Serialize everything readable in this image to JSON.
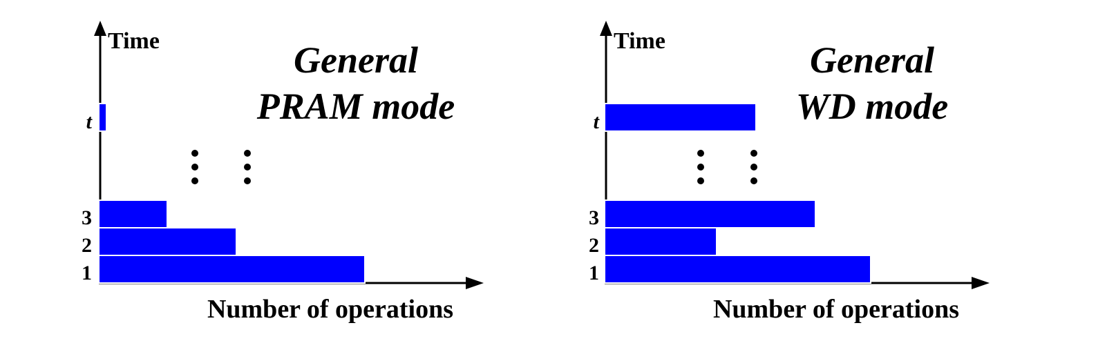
{
  "panels": [
    {
      "title_line1": "General",
      "title_line2": "PRAM mode",
      "y_axis_label": "Time",
      "x_axis_label": "Number of operations",
      "steps": [
        {
          "label": "1",
          "operations": 0.653
        },
        {
          "label": "2",
          "operations": 0.338
        },
        {
          "label": "3",
          "operations": 0.168
        },
        {
          "label": "t",
          "operations": 0.018
        }
      ],
      "bar_color": "#0000ff"
    },
    {
      "title_line1": "General",
      "title_line2": "WD mode",
      "y_axis_label": "Time",
      "x_axis_label": "Number of operations",
      "steps": [
        {
          "label": "1",
          "operations": 0.653
        },
        {
          "label": "2",
          "operations": 0.274
        },
        {
          "label": "3",
          "operations": 0.517
        },
        {
          "label": "t",
          "operations": 0.371
        }
      ],
      "bar_color": "#0000ff"
    }
  ]
}
